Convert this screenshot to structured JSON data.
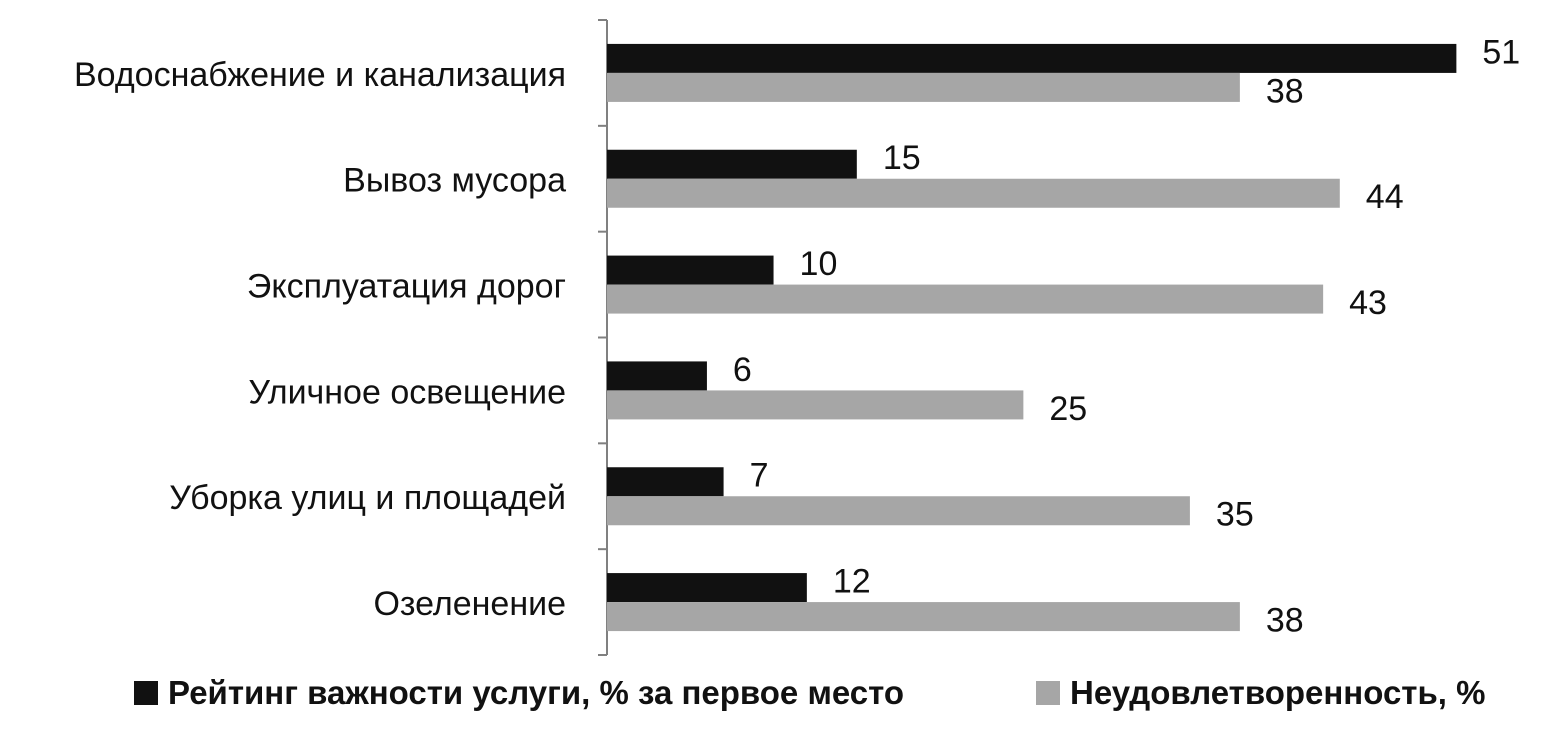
{
  "chart_data": {
    "type": "bar",
    "orientation": "horizontal",
    "categories": [
      "Водоснабжение и канализация",
      "Вывоз мусора",
      "Эксплуатация дорог",
      "Уличное освещение",
      "Уборка улиц и площадей",
      "Озеленение"
    ],
    "series": [
      {
        "name": "Рейтинг важности услуги, % за первое место",
        "color": "#111111",
        "values": [
          51,
          15,
          10,
          6,
          7,
          12
        ]
      },
      {
        "name": "Неудовлетворенность, %",
        "color": "#a6a6a6",
        "values": [
          38,
          44,
          43,
          25,
          35,
          38
        ]
      }
    ],
    "xlim": [
      0,
      55
    ],
    "grid": false,
    "legend_position": "bottom",
    "data_labels": true
  }
}
